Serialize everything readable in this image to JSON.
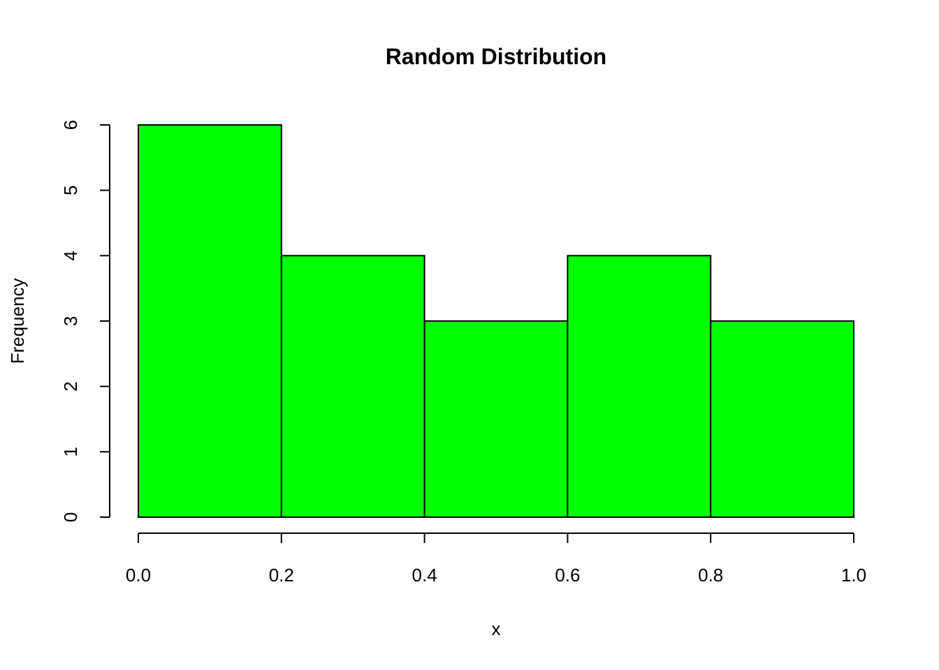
{
  "chart_data": {
    "type": "bar",
    "title": "Random Distribution",
    "xlabel": "x",
    "ylabel": "Frequency",
    "bins": [
      {
        "start": 0.0,
        "end": 0.2,
        "count": 6
      },
      {
        "start": 0.2,
        "end": 0.4,
        "count": 4
      },
      {
        "start": 0.4,
        "end": 0.6,
        "count": 3
      },
      {
        "start": 0.6,
        "end": 0.8,
        "count": 4
      },
      {
        "start": 0.8,
        "end": 1.0,
        "count": 3
      }
    ],
    "xlim": [
      0.0,
      1.0
    ],
    "ylim": [
      0,
      6
    ],
    "x_ticks": [
      "0.0",
      "0.2",
      "0.4",
      "0.6",
      "0.8",
      "1.0"
    ],
    "y_ticks": [
      "0",
      "1",
      "2",
      "3",
      "4",
      "5",
      "6"
    ],
    "bar_color": "#00FF00",
    "grid": false
  }
}
